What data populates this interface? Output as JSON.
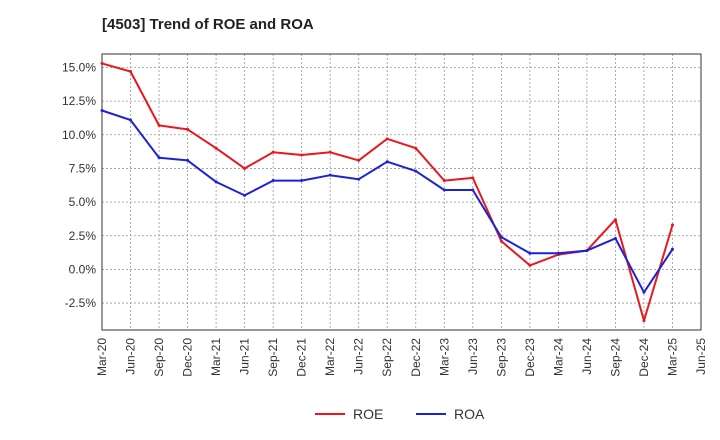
{
  "chart_data": {
    "type": "line",
    "title": "[4503]  Trend of ROE and ROA",
    "x": [
      "Mar-20",
      "Jun-20",
      "Sep-20",
      "Dec-20",
      "Mar-21",
      "Jun-21",
      "Sep-21",
      "Dec-21",
      "Mar-22",
      "Jun-22",
      "Sep-22",
      "Dec-22",
      "Mar-23",
      "Jun-23",
      "Sep-23",
      "Dec-23",
      "Mar-24",
      "Jun-24",
      "Sep-24",
      "Dec-24",
      "Mar-25",
      "Jun-25"
    ],
    "series": [
      {
        "name": "ROE",
        "color": "#e8181d",
        "values": [
          15.3,
          14.7,
          10.7,
          10.4,
          9.0,
          7.5,
          8.7,
          8.5,
          8.7,
          8.1,
          9.7,
          9.0,
          6.6,
          6.8,
          2.1,
          0.3,
          1.1,
          1.4,
          3.7,
          -3.8,
          3.3,
          null
        ]
      },
      {
        "name": "ROA",
        "color": "#1d22d6",
        "values": [
          11.8,
          11.1,
          8.3,
          8.1,
          6.5,
          5.5,
          6.6,
          6.6,
          7.0,
          6.7,
          8.0,
          7.3,
          5.9,
          5.9,
          2.4,
          1.2,
          1.2,
          1.4,
          2.3,
          -1.7,
          1.5,
          null
        ]
      }
    ],
    "y_ticks": [
      "15.0%",
      "12.5%",
      "10.0%",
      "7.5%",
      "5.0%",
      "2.5%",
      "0.0%",
      "-2.5%"
    ],
    "ylim": [
      -4.5,
      16.0
    ],
    "grid": true,
    "legend_position": "bottom-center"
  }
}
